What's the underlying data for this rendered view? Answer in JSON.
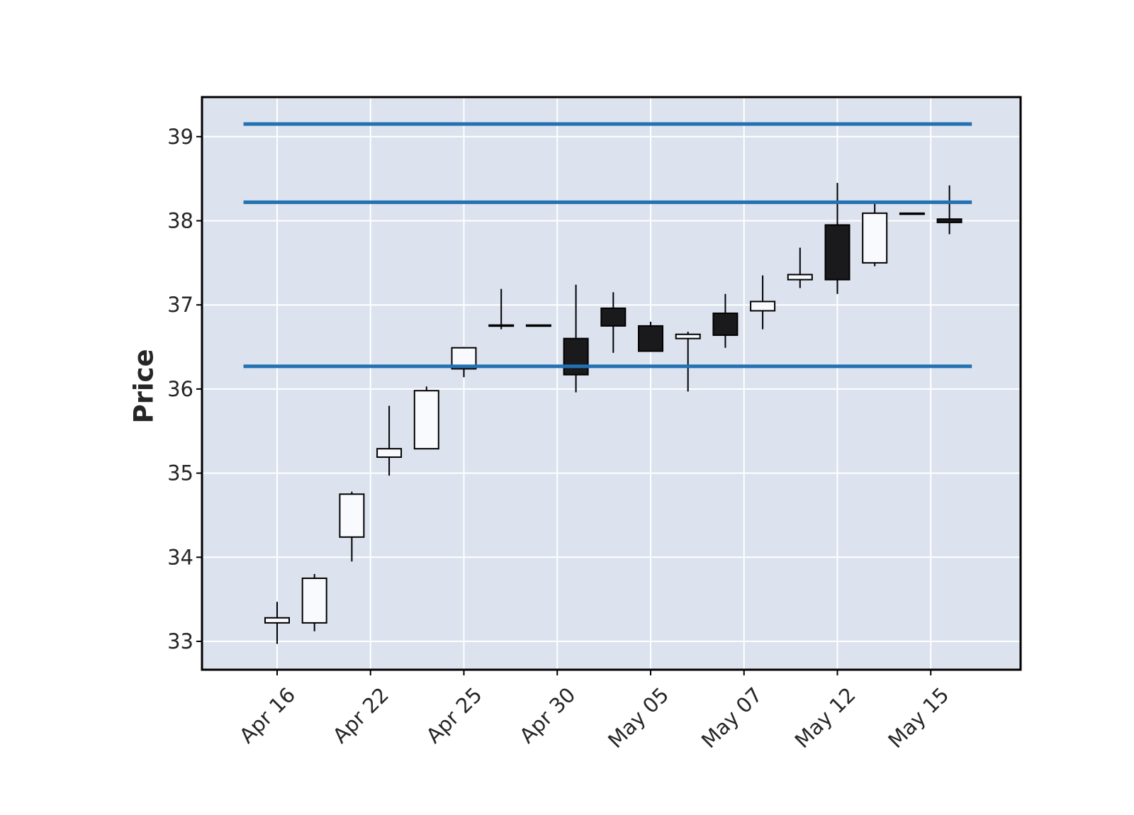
{
  "chart_data": {
    "type": "candlestick",
    "title": "",
    "xlabel": "",
    "ylabel": "Price",
    "ylim": [
      32.65,
      39.47
    ],
    "y_ticks": [
      33,
      34,
      35,
      36,
      37,
      38,
      39
    ],
    "y_tick_labels": [
      "33",
      "34",
      "35",
      "36",
      "37",
      "38",
      "39"
    ],
    "x_tick_labels": [
      "Apr 16",
      "Apr 22",
      "Apr 25",
      "Apr 30",
      "May 05",
      "May 07",
      "May 12",
      "May 15"
    ],
    "x_tick_indices": [
      0,
      2.5,
      5,
      7.5,
      10,
      12.5,
      15,
      17.5
    ],
    "grid": true,
    "colors": {
      "plot_background": "#dce2ee",
      "grid": "#ffffff",
      "up_candle": "#f8fafd",
      "down_candle": "#1a1a1c",
      "candle_edge": "#000000",
      "hlines": "#2271b3"
    },
    "hlines": [
      39.15,
      38.22,
      36.27
    ],
    "candles": [
      {
        "index": 0,
        "open": 33.22,
        "high": 33.47,
        "low": 32.97,
        "close": 33.28
      },
      {
        "index": 1,
        "open": 33.22,
        "high": 33.8,
        "low": 33.12,
        "close": 33.75
      },
      {
        "index": 2,
        "open": 34.24,
        "high": 34.78,
        "low": 33.95,
        "close": 34.75
      },
      {
        "index": 3,
        "open": 35.19,
        "high": 35.8,
        "low": 34.97,
        "close": 35.29
      },
      {
        "index": 4,
        "open": 35.29,
        "high": 36.03,
        "low": 35.29,
        "close": 35.98
      },
      {
        "index": 5,
        "open": 36.24,
        "high": 36.5,
        "low": 36.14,
        "close": 36.49
      },
      {
        "index": 6,
        "open": 36.75,
        "high": 37.19,
        "low": 36.71,
        "close": 36.76
      },
      {
        "index": 7,
        "open": 36.76,
        "high": 36.76,
        "low": 36.76,
        "close": 36.76
      },
      {
        "index": 8,
        "open": 36.6,
        "high": 37.24,
        "low": 35.96,
        "close": 36.17
      },
      {
        "index": 9,
        "open": 36.96,
        "high": 37.15,
        "low": 36.43,
        "close": 36.75
      },
      {
        "index": 10,
        "open": 36.75,
        "high": 36.8,
        "low": 36.45,
        "close": 36.45
      },
      {
        "index": 11,
        "open": 36.6,
        "high": 36.68,
        "low": 35.97,
        "close": 36.65
      },
      {
        "index": 12,
        "open": 36.9,
        "high": 37.13,
        "low": 36.49,
        "close": 36.64
      },
      {
        "index": 13,
        "open": 36.93,
        "high": 37.35,
        "low": 36.71,
        "close": 37.04
      },
      {
        "index": 14,
        "open": 37.3,
        "high": 37.68,
        "low": 37.2,
        "close": 37.36
      },
      {
        "index": 15,
        "open": 37.95,
        "high": 38.45,
        "low": 37.13,
        "close": 37.3
      },
      {
        "index": 16,
        "open": 37.5,
        "high": 38.22,
        "low": 37.46,
        "close": 38.09
      },
      {
        "index": 17,
        "open": 38.09,
        "high": 38.09,
        "low": 38.09,
        "close": 38.09
      },
      {
        "index": 18,
        "open": 38.02,
        "high": 38.42,
        "low": 37.84,
        "close": 37.98
      }
    ]
  }
}
